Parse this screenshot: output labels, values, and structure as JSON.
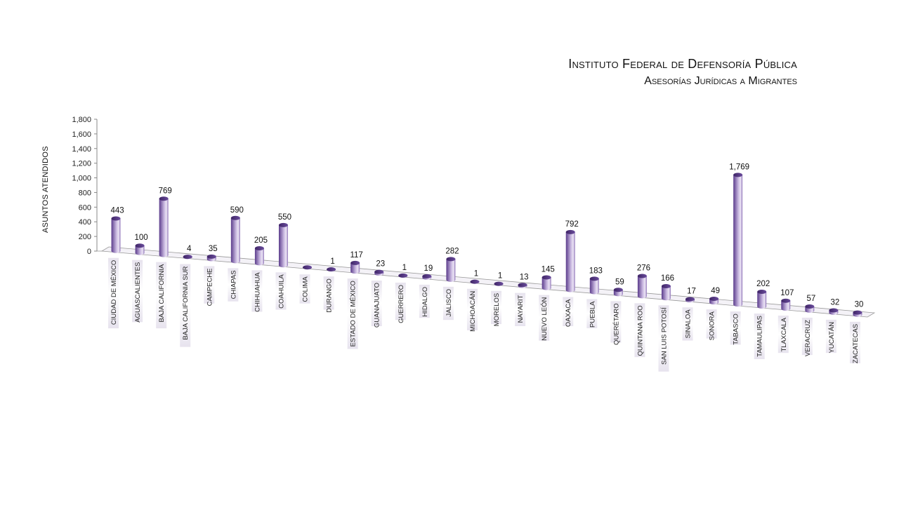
{
  "title": "Instituto Federal de Defensoría Pública",
  "subtitle": "Asesorías Jurídicas a Migrantes",
  "colors": {
    "bar_dark": "#5b3c8c",
    "bar_light": "#e9e1f4",
    "axis": "#8a8a8a"
  },
  "chart_data": {
    "type": "bar",
    "title": "Instituto Federal de Defensoría Pública",
    "subtitle": "Asesorías Jurídicas a Migrantes",
    "xlabel": "",
    "ylabel": "ASUNTOS ATENDIDOS",
    "ylim": [
      0,
      1800
    ],
    "yticks": [
      "0",
      "200",
      "400",
      "600",
      "800",
      "1,000",
      "1,200",
      "1,400",
      "1,600",
      "1,800"
    ],
    "categories": [
      "CIUDAD DE MÉXICO",
      "AGUASCALIENTES",
      "BAJA CALIFORNIA",
      "BAJA CALIFORNIA SUR",
      "CAMPECHE",
      "CHIAPAS",
      "CHIHUAHUA",
      "COAHUILA",
      "COLIMA",
      "DURANGO",
      "ESTADO DE MÉXICO",
      "GUANAJUATO",
      "GUERRERO",
      "HIDALGO",
      "JALISCO",
      "MICHOACÁN",
      "MORELOS",
      "NAYARIT",
      "NUEVO LEÓN",
      "OAXACA",
      "PUEBLA",
      "QUERÉTARO",
      "QUINTANA ROO",
      "SAN LUIS POTOSÍ",
      "SINALOA",
      "SONORA",
      "TABASCO",
      "TAMAULIPAS",
      "TLAXCALA",
      "VERACRUZ",
      "YUCATÁN",
      "ZACATECAS"
    ],
    "values": [
      443,
      100,
      769,
      4,
      35,
      590,
      205,
      550,
      0,
      1,
      117,
      23,
      1,
      19,
      282,
      1,
      1,
      13,
      145,
      792,
      183,
      59,
      276,
      166,
      17,
      49,
      1769,
      202,
      107,
      57,
      32,
      30
    ],
    "value_labels": [
      "443",
      "100",
      "769",
      "4",
      "35",
      "590",
      "205",
      "550",
      "",
      "1",
      "117",
      "23",
      "1",
      "19",
      "282",
      "1",
      "1",
      "13",
      "145",
      "792",
      "183",
      "59",
      "276",
      "166",
      "17",
      "49",
      "1,769",
      "202",
      "107",
      "57",
      "32",
      "30"
    ],
    "grid": false,
    "legend": "none"
  }
}
